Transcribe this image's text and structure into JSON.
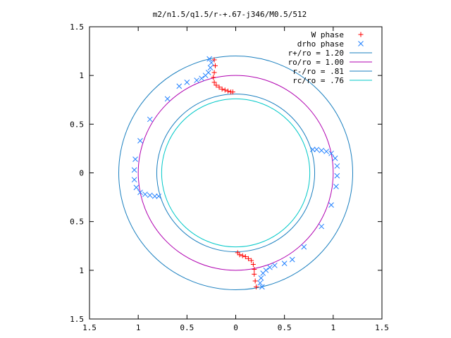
{
  "chart_data": {
    "type": "scatter",
    "title": "m2/n1.5/q1.5/r-+.67-j346/M0.5/512",
    "xlabel": "",
    "ylabel": "",
    "xlim": [
      -1.5,
      1.5
    ],
    "ylim": [
      -1.5,
      1.5
    ],
    "xtick_labels": [
      "1.5",
      "1",
      "0.5",
      "0",
      "0.5",
      "1",
      "1.5"
    ],
    "xtick_values": [
      -1.5,
      -1,
      -0.5,
      0,
      0.5,
      1,
      1.5
    ],
    "ytick_labels": [
      "1.5",
      "1",
      "0.5",
      "0",
      "0.5",
      "1",
      "1.5"
    ],
    "ytick_values": [
      1.5,
      1,
      0.5,
      0,
      -0.5,
      -1,
      -1.5
    ],
    "grid": false,
    "legend_position": "top-right",
    "legend": [
      {
        "label": "W phase",
        "kind": "point",
        "symbol": "+",
        "color": "#ff0000"
      },
      {
        "label": "drho phase",
        "kind": "point",
        "symbol": "x",
        "color": "#2080ff"
      },
      {
        "label": "r+/ro = 1.20",
        "kind": "line",
        "color": "#1a7fbf"
      },
      {
        "label": "ro/ro = 1.00",
        "kind": "line",
        "color": "#b000b0"
      },
      {
        "label": "r-/ro = .81",
        "kind": "line",
        "color": "#1a7fbf"
      },
      {
        "label": "rc/ro = .76",
        "kind": "line",
        "color": "#00c8c8"
      }
    ],
    "circles": [
      {
        "label": "r+/ro = 1.20",
        "r": 1.2,
        "color": "#1a7fbf"
      },
      {
        "label": "ro/ro = 1.00",
        "r": 1.0,
        "color": "#b000b0"
      },
      {
        "label": "r-/ro = .81",
        "r": 0.81,
        "color": "#1a7fbf"
      },
      {
        "label": "rc/ro = .76",
        "r": 0.76,
        "color": "#00c8c8"
      }
    ],
    "series": [
      {
        "name": "W phase",
        "marker": "+",
        "color": "#ff0000",
        "x": [
          -0.22,
          -0.21,
          -0.22,
          -0.23,
          -0.22,
          -0.2,
          -0.17,
          -0.14,
          -0.11,
          -0.08,
          -0.05,
          -0.03,
          0.21,
          0.2,
          0.19,
          0.19,
          0.18,
          0.16,
          0.13,
          0.1,
          0.07,
          0.04,
          0.02
        ],
        "y": [
          1.16,
          1.1,
          1.03,
          0.98,
          0.93,
          0.9,
          0.88,
          0.86,
          0.85,
          0.84,
          0.83,
          0.83,
          -1.17,
          -1.11,
          -1.04,
          -0.99,
          -0.94,
          -0.9,
          -0.88,
          -0.86,
          -0.85,
          -0.84,
          -0.82
        ]
      },
      {
        "name": "drho phase",
        "marker": "x",
        "color": "#2080ff",
        "x": [
          -0.27,
          -0.25,
          -0.26,
          -0.28,
          -0.31,
          -0.35,
          -0.4,
          -0.5,
          -0.58,
          -0.7,
          -0.88,
          -0.98,
          -1.03,
          -1.04,
          -1.04,
          -1.02,
          -0.98,
          -0.93,
          -0.88,
          -0.83,
          -0.79,
          0.27,
          0.25,
          0.26,
          0.28,
          0.31,
          0.35,
          0.4,
          0.5,
          0.58,
          0.7,
          0.88,
          0.98,
          1.03,
          1.04,
          1.04,
          1.02,
          0.98,
          0.93,
          0.88,
          0.83,
          0.79
        ],
        "y": [
          1.17,
          1.13,
          1.08,
          1.03,
          1.0,
          0.97,
          0.95,
          0.93,
          0.89,
          0.76,
          0.55,
          0.33,
          0.14,
          0.03,
          -0.07,
          -0.15,
          -0.2,
          -0.22,
          -0.23,
          -0.24,
          -0.24,
          -1.17,
          -1.13,
          -1.08,
          -1.03,
          -1.0,
          -0.97,
          -0.95,
          -0.93,
          -0.89,
          -0.76,
          -0.55,
          -0.33,
          -0.14,
          -0.03,
          0.07,
          0.15,
          0.2,
          0.22,
          0.23,
          0.24,
          0.24
        ]
      }
    ]
  }
}
